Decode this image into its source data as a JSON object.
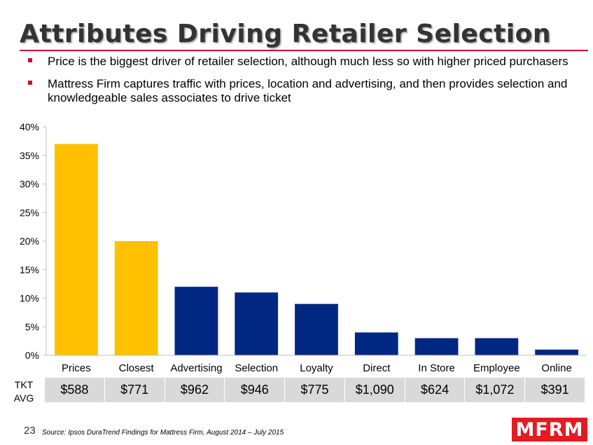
{
  "title": "Attributes Driving Retailer Selection",
  "bullets": [
    "Price is the biggest driver of retailer selection, although much less so with higher priced purchasers",
    "Mattress Firm captures traffic with prices, location and advertising, and then provides selection and knowledgeable sales associates to drive ticket"
  ],
  "colors": {
    "highlight": "#FFC000",
    "primary": "#002882",
    "accent": "#C8102E",
    "table_bg": "#D9D9D9"
  },
  "chart_data": {
    "type": "bar",
    "categories": [
      "Prices",
      "Closest",
      "Advertising",
      "Selection",
      "Loyalty",
      "Direct",
      "In Store",
      "Employee",
      "Online"
    ],
    "values": [
      37,
      20,
      12,
      11,
      9,
      4,
      3,
      3,
      1
    ],
    "highlighted": [
      true,
      true,
      false,
      false,
      false,
      false,
      false,
      false,
      false
    ],
    "ylim": [
      0,
      40
    ],
    "yticks": [
      "0%",
      "5%",
      "10%",
      "15%",
      "20%",
      "25%",
      "30%",
      "35%",
      "40%"
    ],
    "title": "",
    "xlabel": "",
    "ylabel": ""
  },
  "ticket": {
    "label_line1": "TKT",
    "label_line2": "AVG",
    "values": [
      "$588",
      "$771",
      "$962",
      "$946",
      "$775",
      "$1,090",
      "$624",
      "$1,072",
      "$391"
    ]
  },
  "footer": {
    "page_number": "23",
    "source": "Source: Ipsos DuraTrend Findings for Mattress Firm, August 2014 – July 2015",
    "logo_text": "MFRM"
  }
}
